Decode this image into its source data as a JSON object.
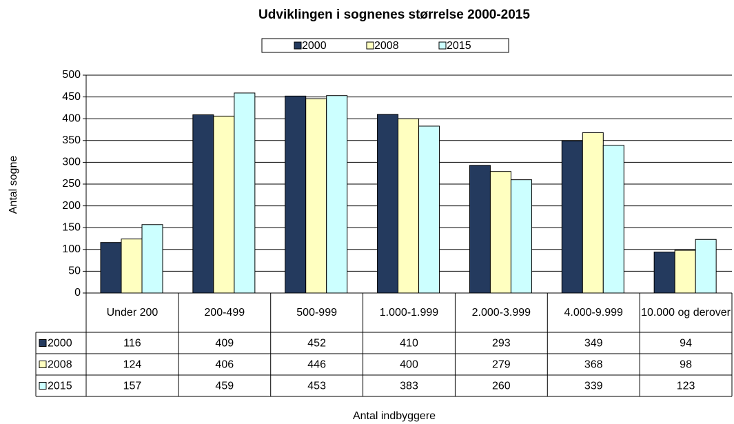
{
  "chart_data": {
    "type": "bar",
    "title": "Udviklingen i sognenes størrelse 2000-2015",
    "x_label": "Antal indbyggere",
    "y_label": "Antal sogne",
    "categories": [
      "Under 200",
      "200-499",
      "500-999",
      "1.000-1.999",
      "2.000-3.999",
      "4.000-9.999",
      "10.000 og derover"
    ],
    "series": [
      {
        "name": "2000",
        "color": "#243a5e",
        "values": [
          116,
          409,
          452,
          410,
          293,
          349,
          94
        ]
      },
      {
        "name": "2008",
        "color": "#ffffc0",
        "values": [
          124,
          406,
          446,
          400,
          279,
          368,
          98
        ]
      },
      {
        "name": "2015",
        "color": "#ccffff",
        "values": [
          157,
          459,
          453,
          383,
          260,
          339,
          123
        ]
      }
    ],
    "ylim": [
      0,
      500
    ],
    "yticks": [
      0,
      50,
      100,
      150,
      200,
      250,
      300,
      350,
      400,
      450,
      500
    ],
    "grid": true,
    "legend": "top",
    "data_table": true
  }
}
